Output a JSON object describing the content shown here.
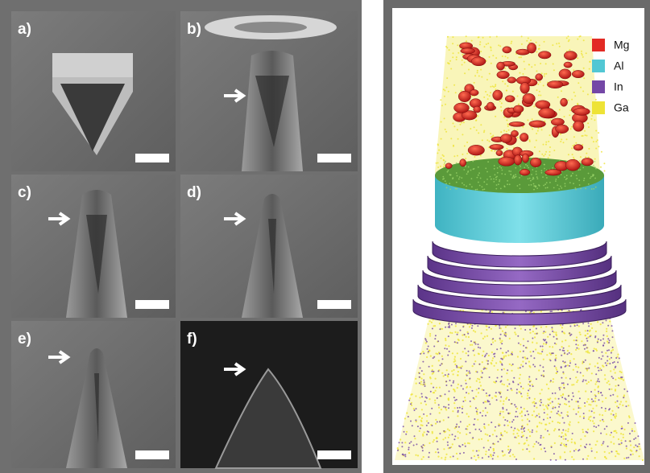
{
  "panels": [
    {
      "label": "a)"
    },
    {
      "label": "b)"
    },
    {
      "label": "c)"
    },
    {
      "label": "d)"
    },
    {
      "label": "e)"
    },
    {
      "label": "f)"
    }
  ],
  "legend": [
    {
      "name": "Mg",
      "color": "#e22a24"
    },
    {
      "name": "Al",
      "color": "#52c7d4"
    },
    {
      "name": "In",
      "color": "#7447a6"
    },
    {
      "name": "Ga",
      "color": "#eee336"
    }
  ]
}
